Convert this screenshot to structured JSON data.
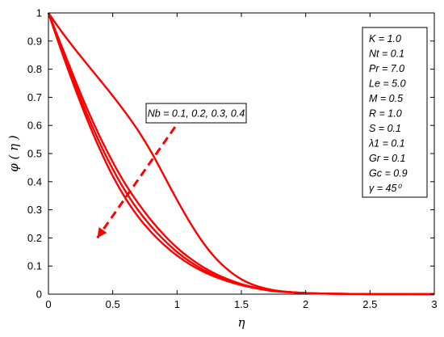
{
  "chart_data": {
    "type": "line",
    "xlabel": "η",
    "ylabel": "φ ( η )",
    "xlim": [
      0,
      3
    ],
    "ylim": [
      0,
      1
    ],
    "x_ticks": [
      "0",
      "0.5",
      "1",
      "1.5",
      "2",
      "2.5",
      "3"
    ],
    "y_ticks": [
      "0",
      "0.1",
      "0.2",
      "0.3",
      "0.4",
      "0.5",
      "0.6",
      "0.7",
      "0.8",
      "0.9",
      "1"
    ],
    "grid": false,
    "line_color": "#ff0000",
    "series": [
      {
        "values": [
          [
            0,
            1
          ],
          [
            0.1,
            0.935
          ],
          [
            0.2,
            0.875
          ],
          [
            0.3,
            0.818
          ],
          [
            0.4,
            0.762
          ],
          [
            0.5,
            0.705
          ],
          [
            0.6,
            0.645
          ],
          [
            0.7,
            0.58
          ],
          [
            0.8,
            0.505
          ],
          [
            0.9,
            0.42
          ],
          [
            1.0,
            0.335
          ],
          [
            1.1,
            0.255
          ],
          [
            1.2,
            0.185
          ],
          [
            1.3,
            0.128
          ],
          [
            1.4,
            0.085
          ],
          [
            1.5,
            0.053
          ],
          [
            1.6,
            0.032
          ],
          [
            1.7,
            0.019
          ],
          [
            1.8,
            0.011
          ],
          [
            2.0,
            0.004
          ],
          [
            2.2,
            0.0015
          ],
          [
            2.5,
            0.0003
          ],
          [
            3.0,
            0
          ]
        ]
      },
      {
        "values": [
          [
            0,
            1
          ],
          [
            0.1,
            0.885
          ],
          [
            0.2,
            0.77
          ],
          [
            0.3,
            0.66
          ],
          [
            0.4,
            0.56
          ],
          [
            0.5,
            0.47
          ],
          [
            0.6,
            0.39
          ],
          [
            0.7,
            0.322
          ],
          [
            0.8,
            0.262
          ],
          [
            0.9,
            0.21
          ],
          [
            1.0,
            0.165
          ],
          [
            1.1,
            0.128
          ],
          [
            1.2,
            0.097
          ],
          [
            1.3,
            0.072
          ],
          [
            1.4,
            0.052
          ],
          [
            1.5,
            0.036
          ],
          [
            1.6,
            0.024
          ],
          [
            1.7,
            0.016
          ],
          [
            1.8,
            0.01
          ],
          [
            2.0,
            0.004
          ],
          [
            2.2,
            0.0015
          ],
          [
            2.5,
            0.0003
          ],
          [
            3.0,
            0
          ]
        ]
      },
      {
        "values": [
          [
            0,
            1
          ],
          [
            0.1,
            0.875
          ],
          [
            0.2,
            0.755
          ],
          [
            0.3,
            0.64
          ],
          [
            0.4,
            0.537
          ],
          [
            0.5,
            0.445
          ],
          [
            0.6,
            0.365
          ],
          [
            0.7,
            0.297
          ],
          [
            0.8,
            0.24
          ],
          [
            0.9,
            0.192
          ],
          [
            1.0,
            0.15
          ],
          [
            1.1,
            0.116
          ],
          [
            1.2,
            0.088
          ],
          [
            1.3,
            0.066
          ],
          [
            1.4,
            0.048
          ],
          [
            1.5,
            0.034
          ],
          [
            1.6,
            0.023
          ],
          [
            1.7,
            0.015
          ],
          [
            1.8,
            0.01
          ],
          [
            2.0,
            0.004
          ],
          [
            2.2,
            0.0015
          ],
          [
            2.5,
            0.0003
          ],
          [
            3.0,
            0
          ]
        ]
      },
      {
        "values": [
          [
            0,
            1
          ],
          [
            0.1,
            0.866
          ],
          [
            0.2,
            0.74
          ],
          [
            0.3,
            0.622
          ],
          [
            0.4,
            0.515
          ],
          [
            0.5,
            0.42
          ],
          [
            0.6,
            0.34
          ],
          [
            0.7,
            0.274
          ],
          [
            0.8,
            0.22
          ],
          [
            0.9,
            0.175
          ],
          [
            1.0,
            0.137
          ],
          [
            1.1,
            0.106
          ],
          [
            1.2,
            0.081
          ],
          [
            1.3,
            0.061
          ],
          [
            1.4,
            0.045
          ],
          [
            1.5,
            0.032
          ],
          [
            1.6,
            0.022
          ],
          [
            1.7,
            0.014
          ],
          [
            1.8,
            0.009
          ],
          [
            2.0,
            0.004
          ],
          [
            2.2,
            0.0015
          ],
          [
            2.5,
            0.0003
          ],
          [
            3.0,
            0
          ]
        ]
      }
    ],
    "annotation": {
      "text": "Nb = 0.1, 0.2, 0.3, 0.4",
      "arrow_from": [
        1.1,
        0.67
      ],
      "arrow_to": [
        0.38,
        0.2
      ]
    },
    "parameter_box": [
      "K = 1.0",
      "Nt = 0.1",
      "Pr = 7.0",
      "Le = 5.0",
      "M = 0.5",
      "R = 1.0",
      "S = 0.1",
      "λ1 = 0.1",
      "Gr = 0.1",
      "Gc = 0.9",
      "γ = 45⁰"
    ]
  }
}
